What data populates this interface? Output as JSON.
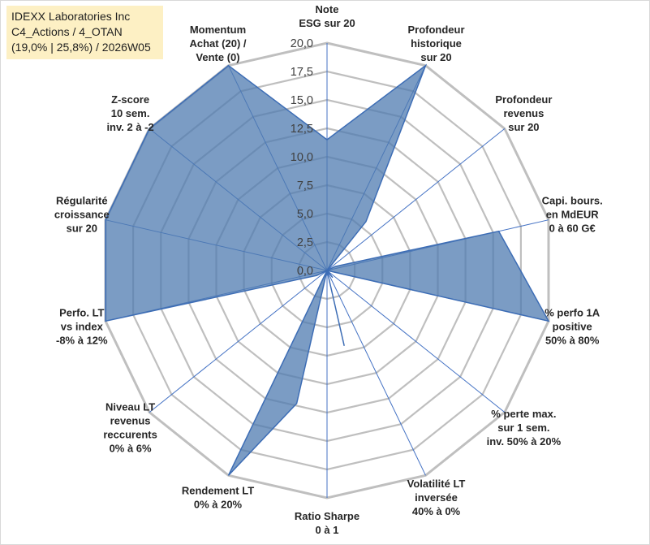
{
  "title_box": {
    "line1": "IDEXX Laboratories Inc",
    "line2": "C4_Actions / 4_OTAN",
    "line3": "(19,0% | 25,8%) / 2026W05"
  },
  "colors": {
    "grid": "#bfbfbf",
    "spoke": "#4472c4",
    "fill": "#4f7bb0",
    "fill_opacity": "0.75",
    "stroke": "#3d6db5",
    "title_bg": "#fdf0c4"
  },
  "chart_data": {
    "type": "radar",
    "rmax": 20,
    "tick_step": 2.5,
    "tick_labels": [
      "0,0",
      "2,5",
      "5,0",
      "7,5",
      "10,0",
      "12,5",
      "15,0",
      "17,5",
      "20,0"
    ],
    "axes": [
      {
        "lines": [
          "Note",
          "ESG sur 20"
        ],
        "value": 11.5
      },
      {
        "lines": [
          "Profondeur",
          "historique",
          "sur 20"
        ],
        "value": 20
      },
      {
        "lines": [
          "Profondeur",
          "revenus",
          "sur 20"
        ],
        "value": 0
      },
      {
        "lines": [
          "Capi. bours.",
          "en MdEUR",
          "0 à 60 G€"
        ],
        "value": 15.5
      },
      {
        "lines": [
          "% perfo 1A",
          "positive",
          "50% à 80%"
        ],
        "value": 20
      },
      {
        "lines": [
          "% perte max.",
          "sur 1 sem.",
          "inv. 50% à 20%"
        ],
        "value": 0
      },
      {
        "lines": [
          "Volatilité LT",
          "inversée",
          "40% à 0%"
        ],
        "value": 0
      },
      {
        "lines": [
          "Ratio Sharpe",
          "0 à 1"
        ],
        "value": 0
      },
      {
        "lines": [
          "Rendement LT",
          "0% à 20%"
        ],
        "value": 20
      },
      {
        "lines": [
          "Niveau LT",
          "revenus",
          "reccurents",
          "0% à 6%"
        ],
        "value": 0
      },
      {
        "lines": [
          "Perfo. LT",
          "vs index",
          "-8% à 12%"
        ],
        "value": 20
      },
      {
        "lines": [
          "Régularité",
          "croissance",
          "sur 20"
        ],
        "value": 20
      },
      {
        "lines": [
          "Z-score",
          "10 sem.",
          "inv. 2 à -2"
        ],
        "value": 20
      },
      {
        "lines": [
          "Momentum",
          "Achat (20) /",
          "Vente (0)"
        ],
        "value": 20
      }
    ],
    "inner_points": [
      {
        "after_axis": 1,
        "value": 5.5
      },
      {
        "after_axis": 2,
        "value": 0.8
      },
      {
        "after_axis": 5,
        "value": 0.8
      },
      {
        "after_axis": 6,
        "value": 6.8
      },
      {
        "after_axis": 7,
        "value": 12
      },
      {
        "after_axis": 9,
        "value": 1.0
      }
    ]
  }
}
